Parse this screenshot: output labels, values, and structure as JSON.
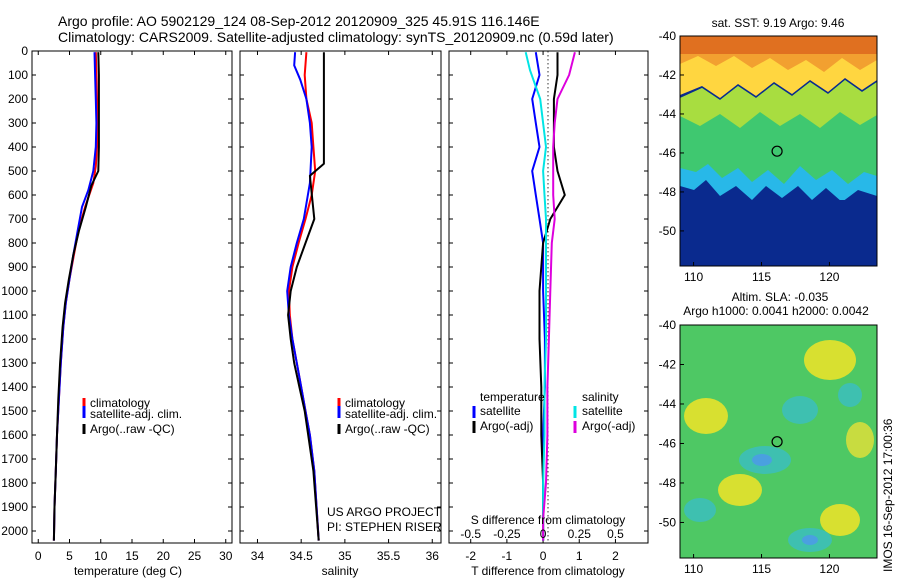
{
  "title_line1": "Argo profile: AO 5902129_124 08-Sep-2012 20120909_325 45.91S 116.146E",
  "title_line2": "Climatology: CARS2009. Satellite-adjusted climatology: synTS_20120909.nc (0.59d later)",
  "timestamp": "IMOS 16-Sep-2012 17:00:36",
  "colors": {
    "climatology": "#ff0000",
    "satellite": "#0000ff",
    "argo": "#000000",
    "sat_salinity": "#00e5e5",
    "argo_salinity": "#dd00dd"
  },
  "chart_data": [
    {
      "type": "line",
      "id": "temperature",
      "xlabel": "temperature (deg C)",
      "xlim": [
        -1,
        31
      ],
      "ylim": [
        2050,
        0
      ],
      "xticks": [
        "0",
        "5",
        "10",
        "15",
        "20",
        "25",
        "30"
      ],
      "yticks": [
        "0",
        "100",
        "200",
        "300",
        "400",
        "500",
        "600",
        "700",
        "800",
        "900",
        "1000",
        "1100",
        "1200",
        "1300",
        "1400",
        "1500",
        "1600",
        "1700",
        "1800",
        "1900",
        "2000"
      ],
      "legend": [
        "climatology",
        "satellite-adj. clim.",
        "Argo(..raw -QC)"
      ],
      "series": [
        {
          "name": "climatology",
          "x": [
            9.2,
            9.3,
            9.4,
            9.5,
            9.4,
            9.2,
            8.8,
            7.5,
            6.4,
            5.7,
            5.0,
            4.4,
            4.0,
            3.6,
            3.3,
            3.0,
            2.8,
            2.6,
            2.5
          ],
          "y": [
            5,
            100,
            200,
            300,
            400,
            480,
            550,
            650,
            750,
            850,
            950,
            1050,
            1150,
            1300,
            1450,
            1600,
            1750,
            1900,
            2040
          ]
        },
        {
          "name": "satellite-adj. clim.",
          "x": [
            9.0,
            9.1,
            9.2,
            9.3,
            9.2,
            8.8,
            8.0,
            7.0,
            6.3,
            5.6,
            5.0,
            4.4,
            4.0,
            3.6,
            3.3,
            3.0,
            2.8,
            2.6,
            2.5
          ],
          "y": [
            5,
            100,
            200,
            300,
            400,
            500,
            580,
            650,
            750,
            850,
            950,
            1050,
            1150,
            1300,
            1450,
            1600,
            1750,
            1900,
            2040
          ]
        },
        {
          "name": "Argo(..raw -QC)",
          "x": [
            9.6,
            9.7,
            9.7,
            9.7,
            9.7,
            9.6,
            8.5,
            7.6,
            6.5,
            5.6,
            4.9,
            4.3,
            3.9,
            3.5,
            3.2,
            3.0,
            2.8,
            2.6,
            2.5
          ],
          "y": [
            5,
            100,
            200,
            300,
            400,
            500,
            560,
            650,
            750,
            850,
            950,
            1050,
            1150,
            1300,
            1450,
            1600,
            1750,
            1900,
            2040
          ]
        }
      ]
    },
    {
      "type": "line",
      "id": "salinity",
      "xlabel": "salinity",
      "xlim": [
        33.8,
        36.1
      ],
      "ylim": [
        2050,
        0
      ],
      "xticks": [
        "34",
        "34.5",
        "35",
        "35.5",
        "36"
      ],
      "legend": [
        "climatology",
        "satellite-adj. clim.",
        "Argo(..raw -QC)"
      ],
      "annotation_line1": "US ARGO PROJECT",
      "annotation_line2": "PI: STEPHEN RISER",
      "series": [
        {
          "name": "climatology",
          "x": [
            34.56,
            34.54,
            34.56,
            34.62,
            34.64,
            34.66,
            34.62,
            34.55,
            34.47,
            34.4,
            34.36,
            34.37,
            34.4,
            34.45,
            34.5,
            34.55,
            34.6,
            34.65,
            34.7
          ],
          "y": [
            5,
            100,
            200,
            300,
            400,
            500,
            600,
            700,
            800,
            900,
            1000,
            1100,
            1200,
            1300,
            1400,
            1500,
            1600,
            1750,
            2040
          ]
        },
        {
          "name": "satellite-adj. clim.",
          "x": [
            34.43,
            34.42,
            34.49,
            34.56,
            34.6,
            34.62,
            34.6,
            34.53,
            34.45,
            34.38,
            34.34,
            34.36,
            34.4,
            34.45,
            34.5,
            34.55,
            34.6,
            34.65,
            34.7
          ],
          "y": [
            5,
            60,
            120,
            200,
            300,
            400,
            550,
            700,
            800,
            900,
            1000,
            1100,
            1200,
            1300,
            1400,
            1500,
            1600,
            1750,
            2040
          ]
        },
        {
          "name": "Argo(..raw -QC)",
          "x": [
            34.76,
            34.76,
            34.76,
            34.76,
            34.76,
            34.76,
            34.6,
            34.65,
            34.55,
            34.45,
            34.38,
            34.35,
            34.38,
            34.42,
            34.48,
            34.54,
            34.58,
            34.64,
            34.7
          ],
          "y": [
            5,
            100,
            200,
            300,
            400,
            470,
            520,
            700,
            800,
            900,
            1000,
            1100,
            1200,
            1300,
            1400,
            1500,
            1600,
            1750,
            2040
          ]
        }
      ]
    },
    {
      "type": "line",
      "id": "difference",
      "xlabel": "T difference from climatology",
      "xlabel_upper": "S difference from climatology",
      "xlim": [
        -2.6,
        2.9
      ],
      "ylim": [
        2050,
        0
      ],
      "xticks": [
        "-2",
        "-1",
        "0",
        "1",
        "2"
      ],
      "xticks_upper": [
        "-0.5",
        "-0.25",
        "0",
        "0.25",
        "0.5"
      ],
      "legend_temperature": [
        "temperature",
        "satellite",
        "Argo(-adj)"
      ],
      "legend_salinity": [
        "salinity",
        "satellite",
        "Argo(-adj)"
      ],
      "series": [
        {
          "name": "T satellite",
          "x": [
            -0.2,
            -0.1,
            -0.3,
            -0.2,
            -0.1,
            -0.3,
            -0.2,
            -0.1,
            0.0,
            0.0,
            0.05,
            0.05,
            0.0,
            0.0,
            0.0,
            0.0
          ],
          "y": [
            5,
            100,
            200,
            300,
            400,
            500,
            600,
            700,
            800,
            1000,
            1200,
            1400,
            1600,
            1800,
            1950,
            2040
          ]
        },
        {
          "name": "T Argo(-adj)",
          "x": [
            0.4,
            0.4,
            0.3,
            0.3,
            0.3,
            0.4,
            0.6,
            0.2,
            0.0,
            -0.1,
            -0.1,
            -0.05,
            -0.05,
            0.0,
            0.0,
            0.0
          ],
          "y": [
            5,
            100,
            200,
            300,
            400,
            500,
            600,
            700,
            800,
            1000,
            1200,
            1400,
            1600,
            1800,
            1950,
            2040
          ]
        },
        {
          "name": "S satellite",
          "x": [
            -0.12,
            -0.09,
            -0.02,
            0.0,
            0.02,
            0.0,
            0.01,
            0.02,
            0.02,
            0.02,
            0.02,
            0.01,
            0.01,
            0.0,
            0.0,
            0.0
          ],
          "y": [
            5,
            80,
            200,
            300,
            400,
            500,
            600,
            700,
            800,
            1000,
            1200,
            1400,
            1600,
            1800,
            1950,
            2040
          ]
        },
        {
          "name": "S Argo(-adj)",
          "x": [
            0.22,
            0.18,
            0.1,
            0.08,
            0.07,
            0.07,
            0.07,
            0.08,
            0.06,
            0.05,
            0.04,
            0.03,
            0.03,
            0.02,
            0.0,
            0.0
          ],
          "y": [
            5,
            100,
            200,
            300,
            400,
            500,
            600,
            700,
            800,
            1000,
            1200,
            1400,
            1600,
            1800,
            1950,
            2040
          ]
        }
      ]
    },
    {
      "type": "heatmap",
      "id": "sst_map",
      "title": "sat. SST: 9.19 Argo: 9.46",
      "xlim": [
        109,
        123.5
      ],
      "ylim": [
        -51.8,
        -40
      ],
      "xticks": [
        "110",
        "115",
        "120"
      ],
      "yticks": [
        "-40",
        "-42",
        "-44",
        "-46",
        "-48",
        "-50"
      ],
      "marker": {
        "lon": 116.146,
        "lat": -45.91
      }
    },
    {
      "type": "heatmap",
      "id": "sla_map",
      "title_line1": "Altim. SLA: -0.035",
      "title_line2": "Argo h1000: 0.0041 h2000: 0.0042",
      "xlim": [
        109,
        123.5
      ],
      "ylim": [
        -51.8,
        -40
      ],
      "xticks": [
        "110",
        "115",
        "120"
      ],
      "yticks": [
        "-40",
        "-42",
        "-44",
        "-46",
        "-48",
        "-50"
      ],
      "marker": {
        "lon": 116.146,
        "lat": -45.91
      }
    }
  ]
}
